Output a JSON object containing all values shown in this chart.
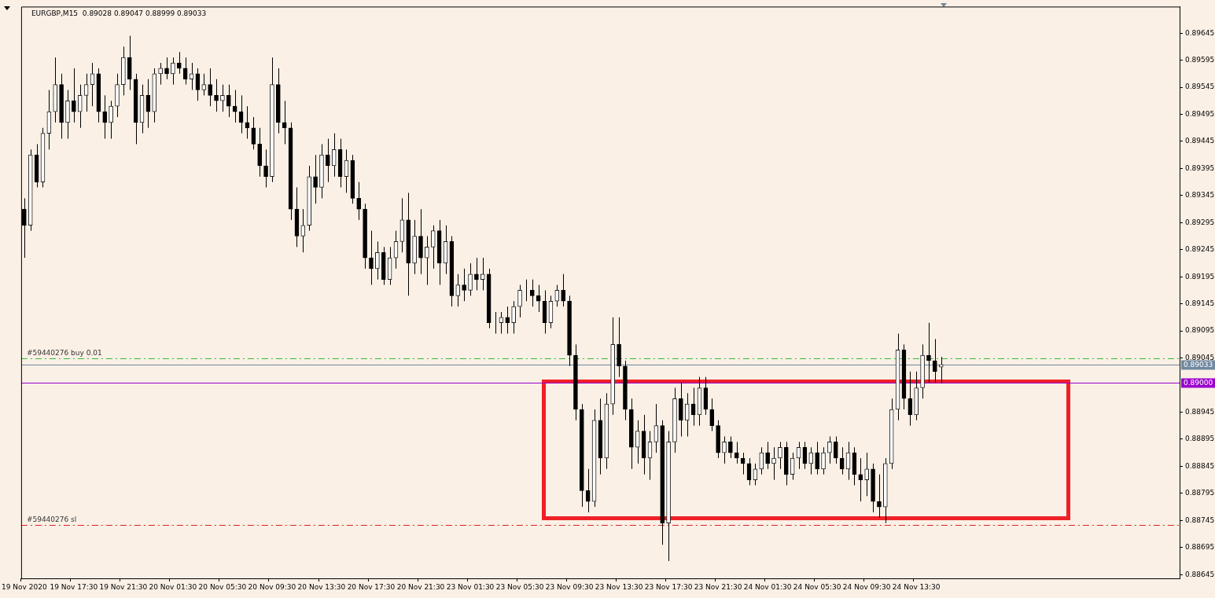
{
  "chart_data": {
    "type": "candlestick",
    "title": "EURGBP,M15  0.89028 0.89047 0.88999 0.89033",
    "categories": [
      "19 Nov 2020",
      null,
      null,
      null,
      null,
      null,
      null,
      null,
      "19 Nov 17:30",
      null,
      null,
      null,
      null,
      null,
      null,
      null,
      "19 Nov 21:30",
      null,
      null,
      null,
      null,
      null,
      null,
      null,
      "20 Nov 01:30",
      null,
      null,
      null,
      null,
      null,
      null,
      null,
      "20 Nov 05:30",
      null,
      null,
      null,
      null,
      null,
      null,
      null,
      "20 Nov 09:30",
      null,
      null,
      null,
      null,
      null,
      null,
      null,
      "20 Nov 13:30",
      null,
      null,
      null,
      null,
      null,
      null,
      null,
      "20 Nov 17:30",
      null,
      null,
      null,
      null,
      null,
      null,
      null,
      "20 Nov 21:30",
      null,
      null,
      null,
      null,
      null,
      null,
      null,
      "23 Nov 01:30",
      null,
      null,
      null,
      null,
      null,
      null,
      null,
      "23 Nov 05:30",
      null,
      null,
      null,
      null,
      null,
      null,
      null,
      "23 Nov 09:30",
      null,
      null,
      null,
      null,
      null,
      null,
      null,
      "23 Nov 13:30",
      null,
      null,
      null,
      null,
      null,
      null,
      null,
      "23 Nov 17:30",
      null,
      null,
      null,
      null,
      null,
      null,
      null,
      "23 Nov 21:30",
      null,
      null,
      null,
      null,
      null,
      null,
      null,
      "24 Nov 01:30",
      null,
      null,
      null,
      null,
      null,
      null,
      null,
      "24 Nov 05:30",
      null,
      null,
      null,
      null,
      null,
      null,
      null,
      "24 Nov 09:30",
      null,
      null,
      null,
      null,
      null,
      null,
      null,
      "24 Nov 13:30",
      null,
      null,
      null,
      null,
      null,
      null,
      null,
      null,
      null,
      null,
      null,
      null,
      null,
      null,
      null,
      null,
      null,
      null,
      null,
      null,
      null,
      null,
      null,
      null,
      null,
      null,
      null,
      null,
      null,
      null,
      null,
      null,
      null,
      null,
      null,
      null,
      null,
      null,
      null,
      null,
      null,
      null
    ],
    "ohlc": [
      [
        0.8932,
        0.8934,
        0.8923,
        0.8929
      ],
      [
        0.8929,
        0.8943,
        0.8928,
        0.8942
      ],
      [
        0.8942,
        0.8944,
        0.8936,
        0.8937
      ],
      [
        0.8937,
        0.8947,
        0.8936,
        0.8946
      ],
      [
        0.8946,
        0.8954,
        0.8943,
        0.895
      ],
      [
        0.895,
        0.896,
        0.8948,
        0.8955
      ],
      [
        0.8955,
        0.8957,
        0.8945,
        0.8948
      ],
      [
        0.8948,
        0.8954,
        0.8945,
        0.8952
      ],
      [
        0.8952,
        0.8958,
        0.8948,
        0.895
      ],
      [
        0.895,
        0.8955,
        0.8947,
        0.8953
      ],
      [
        0.8953,
        0.8957,
        0.895,
        0.8955
      ],
      [
        0.8955,
        0.8959,
        0.8951,
        0.8957
      ],
      [
        0.8957,
        0.8958,
        0.8948,
        0.895
      ],
      [
        0.895,
        0.8953,
        0.8945,
        0.8948
      ],
      [
        0.8948,
        0.8952,
        0.8945,
        0.8951
      ],
      [
        0.8951,
        0.8957,
        0.8949,
        0.8955
      ],
      [
        0.8955,
        0.8962,
        0.8953,
        0.896
      ],
      [
        0.896,
        0.8964,
        0.8954,
        0.8956
      ],
      [
        0.8956,
        0.8957,
        0.8944,
        0.8948
      ],
      [
        0.8948,
        0.8955,
        0.8946,
        0.8953
      ],
      [
        0.8953,
        0.8956,
        0.8947,
        0.895
      ],
      [
        0.895,
        0.8958,
        0.8948,
        0.8957
      ],
      [
        0.8957,
        0.8959,
        0.8955,
        0.8958
      ],
      [
        0.8958,
        0.896,
        0.8956,
        0.8957
      ],
      [
        0.8957,
        0.896,
        0.8955,
        0.8959
      ],
      [
        0.8959,
        0.8961,
        0.8957,
        0.8958
      ],
      [
        0.8958,
        0.896,
        0.8955,
        0.8956
      ],
      [
        0.8956,
        0.8959,
        0.8954,
        0.8957
      ],
      [
        0.8957,
        0.8958,
        0.8952,
        0.8954
      ],
      [
        0.8954,
        0.8957,
        0.8953,
        0.8955
      ],
      [
        0.8955,
        0.8958,
        0.8951,
        0.8953
      ],
      [
        0.8953,
        0.8956,
        0.895,
        0.8952
      ],
      [
        0.8952,
        0.8955,
        0.895,
        0.8953
      ],
      [
        0.8953,
        0.8955,
        0.8949,
        0.8951
      ],
      [
        0.8951,
        0.8954,
        0.8948,
        0.895
      ],
      [
        0.895,
        0.8953,
        0.8946,
        0.8948
      ],
      [
        0.8948,
        0.8951,
        0.8945,
        0.8947
      ],
      [
        0.8947,
        0.8949,
        0.8943,
        0.8944
      ],
      [
        0.8944,
        0.8947,
        0.8938,
        0.894
      ],
      [
        0.894,
        0.8943,
        0.8936,
        0.8938
      ],
      [
        0.8938,
        0.896,
        0.8937,
        0.8955
      ],
      [
        0.8955,
        0.8958,
        0.8946,
        0.8948
      ],
      [
        0.8948,
        0.8952,
        0.8944,
        0.8947
      ],
      [
        0.8947,
        0.8948,
        0.893,
        0.8932
      ],
      [
        0.8932,
        0.8936,
        0.8925,
        0.8927
      ],
      [
        0.8927,
        0.8932,
        0.8924,
        0.8929
      ],
      [
        0.8929,
        0.894,
        0.8928,
        0.8938
      ],
      [
        0.8938,
        0.8942,
        0.8933,
        0.8936
      ],
      [
        0.8936,
        0.8944,
        0.8934,
        0.8942
      ],
      [
        0.8942,
        0.8945,
        0.8937,
        0.894
      ],
      [
        0.894,
        0.8946,
        0.8938,
        0.8943
      ],
      [
        0.8943,
        0.8945,
        0.8936,
        0.8938
      ],
      [
        0.8938,
        0.8943,
        0.8935,
        0.8941
      ],
      [
        0.8941,
        0.8942,
        0.8933,
        0.8934
      ],
      [
        0.8934,
        0.8937,
        0.893,
        0.8932
      ],
      [
        0.8932,
        0.8933,
        0.8921,
        0.8923
      ],
      [
        0.8923,
        0.8928,
        0.8918,
        0.8921
      ],
      [
        0.8921,
        0.8926,
        0.8919,
        0.8924
      ],
      [
        0.8924,
        0.8925,
        0.8918,
        0.8919
      ],
      [
        0.8919,
        0.8925,
        0.8918,
        0.8923
      ],
      [
        0.8923,
        0.8928,
        0.8921,
        0.8926
      ],
      [
        0.8926,
        0.8934,
        0.8924,
        0.893
      ],
      [
        0.893,
        0.8935,
        0.8916,
        0.8922
      ],
      [
        0.8922,
        0.893,
        0.892,
        0.8927
      ],
      [
        0.8927,
        0.8932,
        0.892,
        0.8923
      ],
      [
        0.8923,
        0.8927,
        0.8918,
        0.8925
      ],
      [
        0.8925,
        0.8929,
        0.8921,
        0.8928
      ],
      [
        0.8928,
        0.893,
        0.8918,
        0.8922
      ],
      [
        0.8922,
        0.8929,
        0.892,
        0.8926
      ],
      [
        0.8926,
        0.8927,
        0.8914,
        0.8916
      ],
      [
        0.8916,
        0.892,
        0.8914,
        0.8918
      ],
      [
        0.8918,
        0.8921,
        0.8915,
        0.8917
      ],
      [
        0.8917,
        0.8922,
        0.8916,
        0.892
      ],
      [
        0.892,
        0.8923,
        0.8917,
        0.8919
      ],
      [
        0.8919,
        0.8923,
        0.8917,
        0.892
      ],
      [
        0.892,
        0.8921,
        0.891,
        0.8911
      ],
      [
        0.8911,
        0.8913,
        0.8909,
        0.8911
      ],
      [
        0.8911,
        0.8913,
        0.8909,
        0.8912
      ],
      [
        0.8912,
        0.8914,
        0.8909,
        0.8911
      ],
      [
        0.8911,
        0.8915,
        0.8909,
        0.8914
      ],
      [
        0.8914,
        0.8918,
        0.8912,
        0.8917
      ],
      [
        0.8917,
        0.8919,
        0.8915,
        0.8917
      ],
      [
        0.8917,
        0.8919,
        0.8914,
        0.8916
      ],
      [
        0.8916,
        0.8918,
        0.8913,
        0.8915
      ],
      [
        0.8915,
        0.8917,
        0.8909,
        0.8911
      ],
      [
        0.8911,
        0.8916,
        0.891,
        0.8915
      ],
      [
        0.8915,
        0.8918,
        0.8914,
        0.8917
      ],
      [
        0.8917,
        0.892,
        0.8914,
        0.8915
      ],
      [
        0.8915,
        0.8916,
        0.8903,
        0.8905
      ],
      [
        0.8905,
        0.8907,
        0.8893,
        0.8895
      ],
      [
        0.8895,
        0.8896,
        0.8877,
        0.888
      ],
      [
        0.888,
        0.8884,
        0.8876,
        0.8878
      ],
      [
        0.8878,
        0.8895,
        0.8877,
        0.8893
      ],
      [
        0.8893,
        0.8897,
        0.8883,
        0.8886
      ],
      [
        0.8886,
        0.8898,
        0.8884,
        0.8896
      ],
      [
        0.8896,
        0.8912,
        0.8894,
        0.8907
      ],
      [
        0.8907,
        0.8912,
        0.8901,
        0.8903
      ],
      [
        0.8903,
        0.8904,
        0.8893,
        0.8895
      ],
      [
        0.8895,
        0.8897,
        0.8884,
        0.8888
      ],
      [
        0.8888,
        0.8893,
        0.8885,
        0.8891
      ],
      [
        0.8891,
        0.8894,
        0.8883,
        0.8886
      ],
      [
        0.8886,
        0.8891,
        0.8882,
        0.8889
      ],
      [
        0.8889,
        0.8896,
        0.8887,
        0.8892
      ],
      [
        0.8892,
        0.8893,
        0.887,
        0.8874
      ],
      [
        0.8874,
        0.8891,
        0.8867,
        0.8889
      ],
      [
        0.8889,
        0.8899,
        0.8887,
        0.8897
      ],
      [
        0.8897,
        0.89,
        0.889,
        0.8893
      ],
      [
        0.8893,
        0.8898,
        0.889,
        0.8896
      ],
      [
        0.8896,
        0.8899,
        0.8892,
        0.8894
      ],
      [
        0.8894,
        0.8901,
        0.8892,
        0.8899
      ],
      [
        0.8899,
        0.8901,
        0.8894,
        0.8895
      ],
      [
        0.8895,
        0.8897,
        0.8891,
        0.8892
      ],
      [
        0.8892,
        0.8893,
        0.8886,
        0.8887
      ],
      [
        0.8887,
        0.889,
        0.8885,
        0.8889
      ],
      [
        0.8889,
        0.889,
        0.8886,
        0.8887
      ],
      [
        0.8887,
        0.8889,
        0.8885,
        0.8886
      ],
      [
        0.8886,
        0.8887,
        0.8883,
        0.8885
      ],
      [
        0.8885,
        0.8886,
        0.8881,
        0.8882
      ],
      [
        0.8882,
        0.8885,
        0.8881,
        0.8884
      ],
      [
        0.8884,
        0.8888,
        0.8883,
        0.8887
      ],
      [
        0.8887,
        0.8889,
        0.8884,
        0.8885
      ],
      [
        0.8885,
        0.8888,
        0.8882,
        0.8886
      ],
      [
        0.8886,
        0.8889,
        0.8884,
        0.8888
      ],
      [
        0.8888,
        0.8889,
        0.8881,
        0.8883
      ],
      [
        0.8883,
        0.8887,
        0.8882,
        0.8886
      ],
      [
        0.8886,
        0.8889,
        0.8884,
        0.8888
      ],
      [
        0.8888,
        0.8889,
        0.8884,
        0.8885
      ],
      [
        0.8885,
        0.8888,
        0.8883,
        0.8887
      ],
      [
        0.8887,
        0.8889,
        0.8883,
        0.8884
      ],
      [
        0.8884,
        0.8888,
        0.8883,
        0.8887
      ],
      [
        0.8887,
        0.889,
        0.8885,
        0.8889
      ],
      [
        0.8889,
        0.889,
        0.8885,
        0.8886
      ],
      [
        0.8886,
        0.8888,
        0.8883,
        0.8884
      ],
      [
        0.8884,
        0.8889,
        0.8882,
        0.8887
      ],
      [
        0.8887,
        0.8888,
        0.8881,
        0.8883
      ],
      [
        0.8883,
        0.8886,
        0.8878,
        0.8882
      ],
      [
        0.8882,
        0.8887,
        0.8879,
        0.8884
      ],
      [
        0.8884,
        0.8885,
        0.8876,
        0.8878
      ],
      [
        0.8878,
        0.8883,
        0.8875,
        0.8877
      ],
      [
        0.8877,
        0.8886,
        0.8874,
        0.8885
      ],
      [
        0.8885,
        0.8897,
        0.8884,
        0.8895
      ],
      [
        0.8895,
        0.8909,
        0.8893,
        0.8906
      ],
      [
        0.8906,
        0.8907,
        0.8895,
        0.8897
      ],
      [
        0.8897,
        0.8902,
        0.8892,
        0.8894
      ],
      [
        0.8894,
        0.8902,
        0.8893,
        0.8899
      ],
      [
        0.8899,
        0.8907,
        0.8897,
        0.8905
      ],
      [
        0.8905,
        0.8911,
        0.89,
        0.8904
      ],
      [
        0.8904,
        0.8908,
        0.89,
        0.8902
      ],
      [
        0.89028,
        0.89047,
        0.88999,
        0.89033
      ],
      null,
      null,
      null,
      null,
      null,
      null,
      null,
      null,
      null,
      null,
      null,
      null,
      null,
      null,
      null,
      null,
      null,
      null,
      null,
      null,
      null,
      null,
      null,
      null,
      null,
      null,
      null,
      null,
      null,
      null,
      null,
      null,
      null,
      null,
      null,
      null,
      null,
      null
    ],
    "ylim": [
      0.88638,
      0.89694
    ],
    "yticks": [
      0.88645,
      0.88695,
      0.88745,
      0.88795,
      0.88845,
      0.88895,
      0.88945,
      0.89045,
      0.89095,
      0.89145,
      0.89195,
      0.89245,
      0.89295,
      0.89345,
      0.89395,
      0.89445,
      0.89495,
      0.89545,
      0.89595,
      0.89645
    ],
    "ref_lines": [
      {
        "axis": "y",
        "value": 0.89045,
        "label": "#59440276 buy 0.01",
        "color": "#33bb33",
        "line_style": "dashed"
      },
      {
        "axis": "y",
        "value": 0.88737,
        "label": "#59440276 sl",
        "color": "#e02020",
        "line_style": "dashed"
      },
      {
        "axis": "y",
        "value": 0.89033,
        "label": "0.89033",
        "color": "#7088a0",
        "line_style": "solid"
      },
      {
        "axis": "y",
        "value": 0.89,
        "label": "0.89000",
        "color": "#9900cc",
        "line_style": "solid"
      }
    ]
  }
}
